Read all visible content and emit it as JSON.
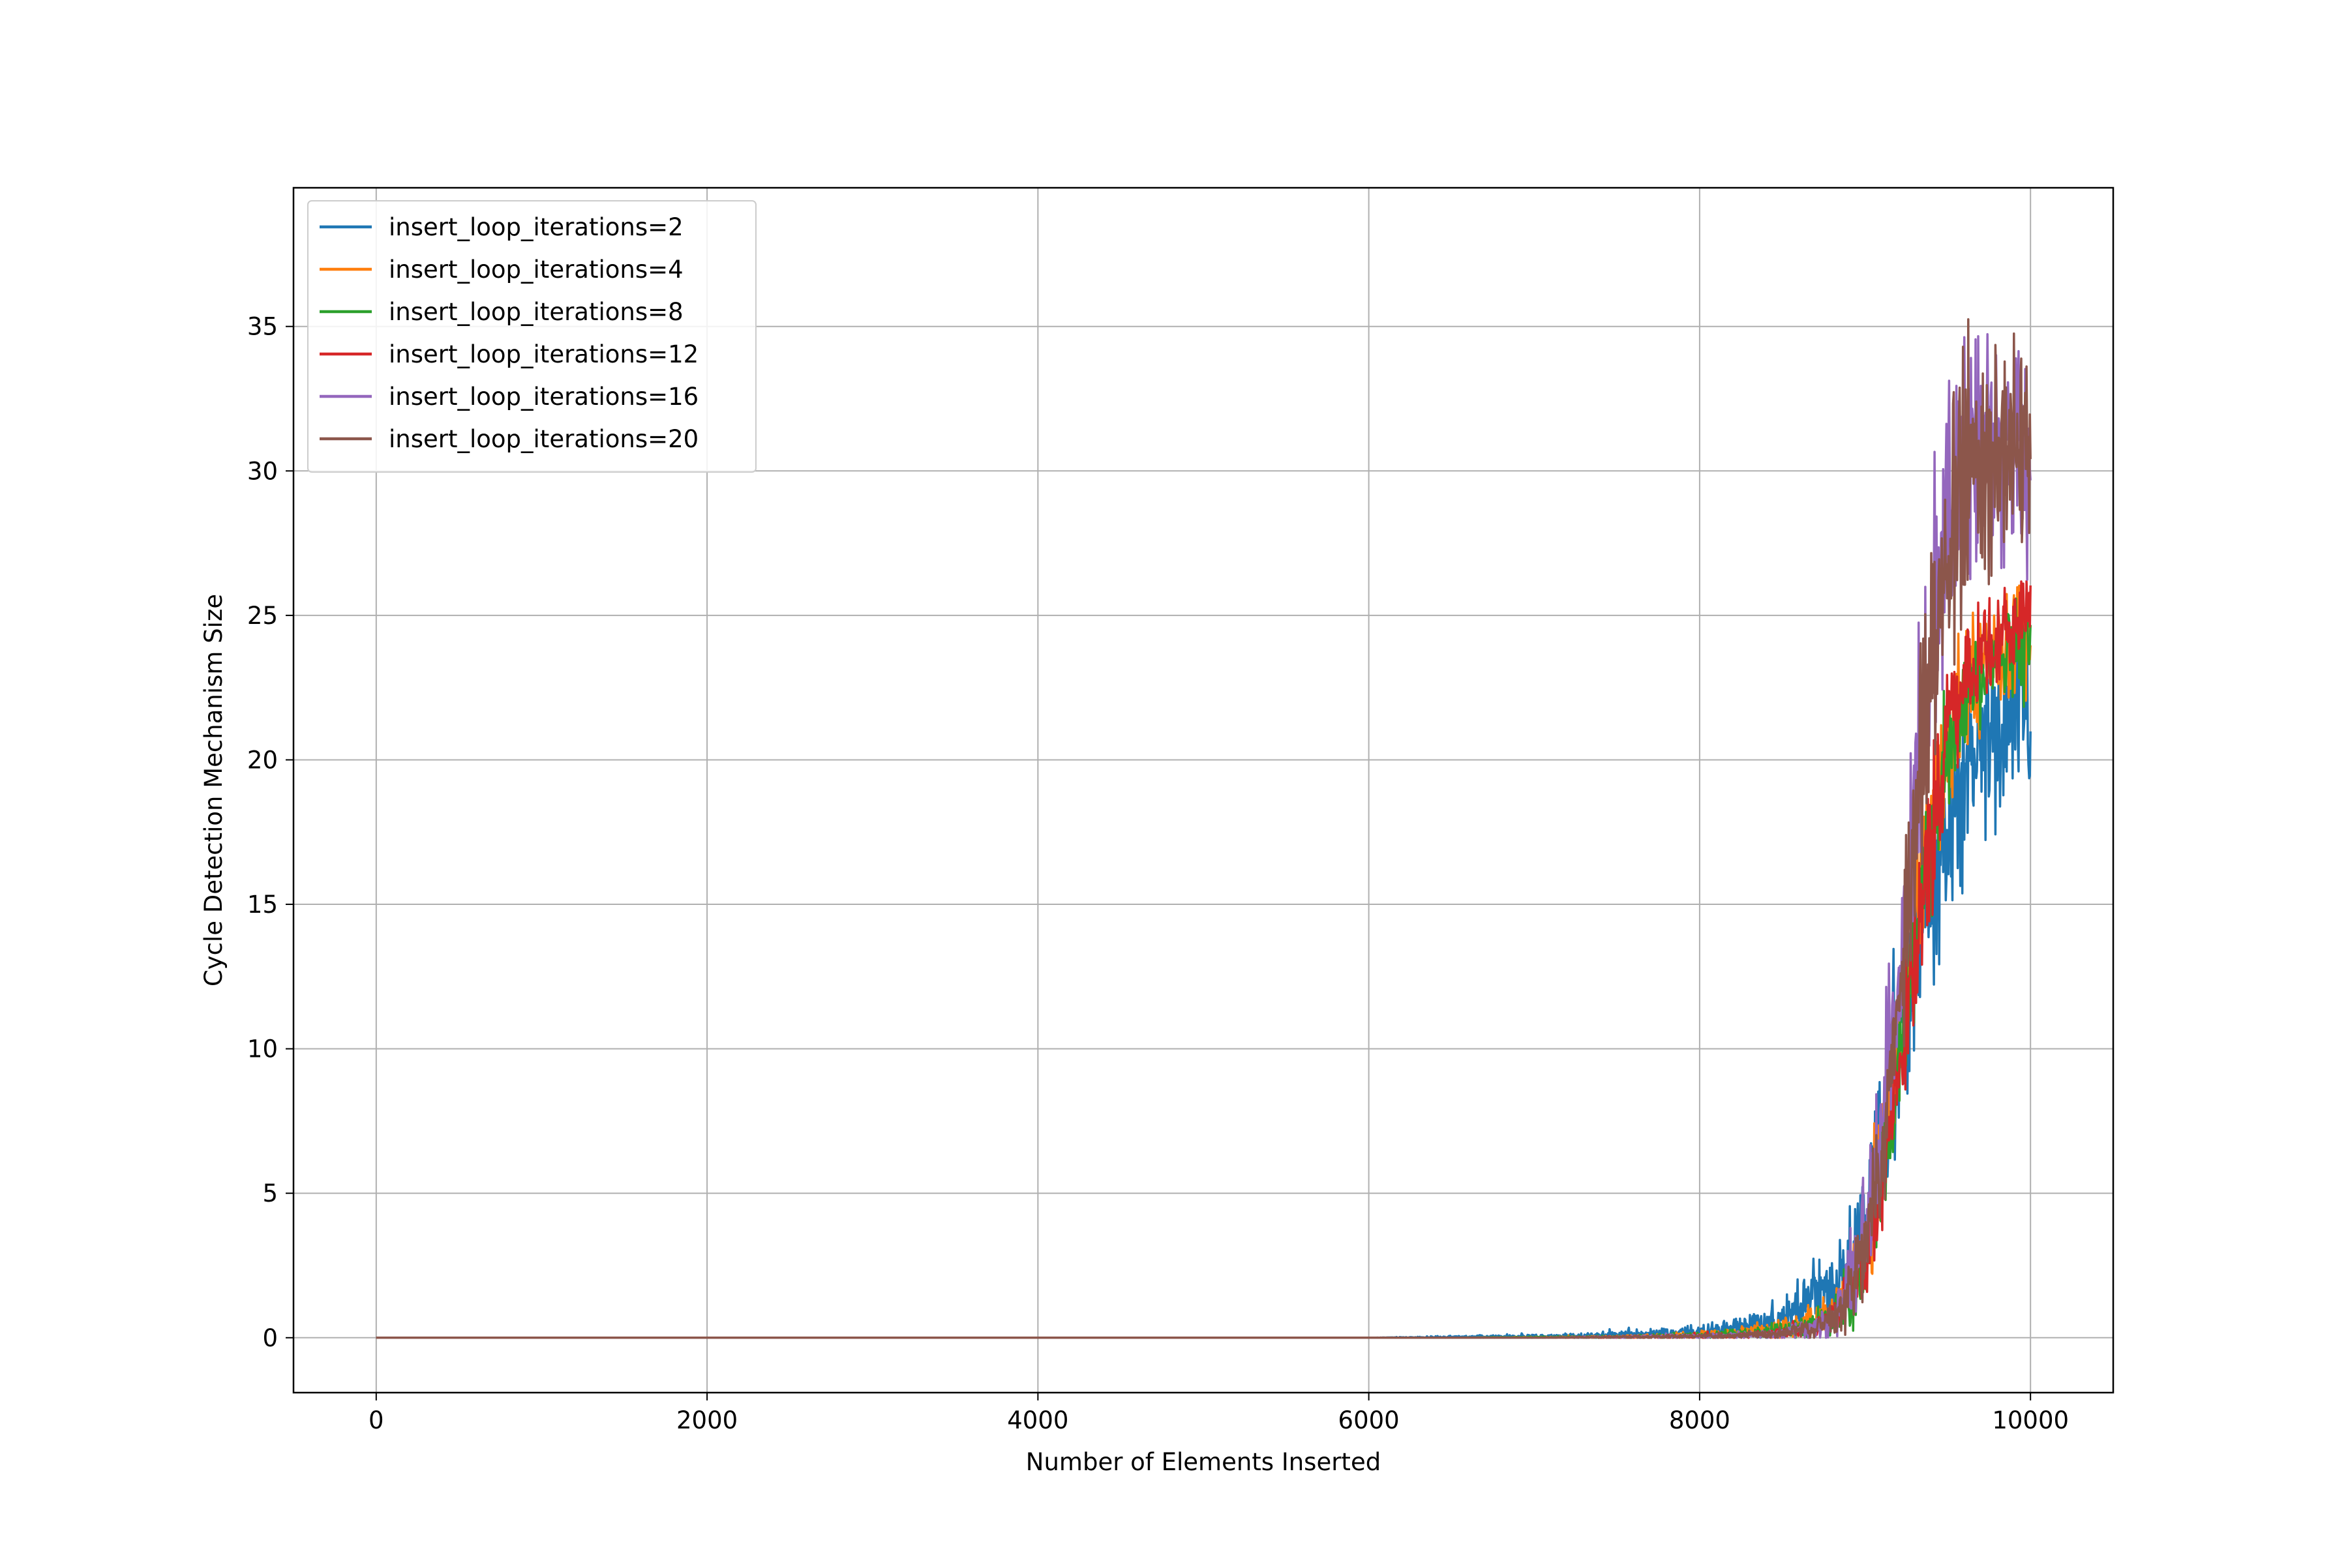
{
  "chart_data": {
    "type": "line",
    "title": "",
    "xlabel": "Number of Elements Inserted",
    "ylabel": "Cycle Detection Mechanism Size",
    "xlim": [
      -500,
      10500
    ],
    "ylim": [
      -1.9,
      39.8
    ],
    "xticks": [
      0,
      2000,
      4000,
      6000,
      8000,
      10000
    ],
    "xtick_labels": [
      "0",
      "2000",
      "4000",
      "6000",
      "8000",
      "10000"
    ],
    "yticks": [
      0,
      5,
      10,
      15,
      20,
      25,
      30,
      35
    ],
    "ytick_labels": [
      "0",
      "5",
      "10",
      "15",
      "20",
      "25",
      "30",
      "35"
    ],
    "grid": true,
    "legend_position": "top-left",
    "series": [
      {
        "name": "insert_loop_iterations=2",
        "color": "#1f77b4",
        "x": [
          0,
          6000,
          7000,
          7500,
          8000,
          8250,
          8500,
          8650,
          8800,
          8900,
          9000,
          9100,
          9200,
          9300,
          9400,
          9500,
          9600,
          9700,
          9800,
          9900,
          10000
        ],
        "y": [
          0,
          0,
          0.05,
          0.1,
          0.2,
          0.35,
          0.7,
          1.2,
          1.8,
          2.6,
          4.2,
          6.5,
          9.5,
          12.5,
          15.5,
          17.5,
          19.0,
          20.5,
          21.5,
          22.0,
          22.0
        ],
        "noise": [
          0,
          0,
          0.05,
          0.1,
          0.15,
          0.3,
          0.5,
          0.8,
          1.0,
          1.2,
          1.4,
          1.8,
          2.0,
          2.2,
          2.4,
          2.4,
          2.4,
          2.4,
          2.4,
          2.4,
          2.2
        ]
      },
      {
        "name": "insert_loop_iterations=4",
        "color": "#ff7f0e",
        "x": [
          0,
          6500,
          7500,
          8000,
          8300,
          8600,
          8800,
          8950,
          9050,
          9150,
          9250,
          9350,
          9450,
          9550,
          9650,
          9750,
          9850,
          10000
        ],
        "y": [
          0,
          0,
          0.03,
          0.1,
          0.2,
          0.4,
          0.9,
          2.2,
          4.5,
          8.0,
          12.0,
          16.0,
          19.5,
          21.5,
          22.8,
          23.5,
          24.0,
          24.2
        ],
        "noise": [
          0,
          0,
          0.03,
          0.08,
          0.15,
          0.3,
          0.5,
          0.9,
          1.3,
          1.6,
          1.8,
          1.9,
          1.8,
          1.6,
          1.4,
          1.3,
          1.3,
          1.3
        ]
      },
      {
        "name": "insert_loop_iterations=8",
        "color": "#2ca02c",
        "x": [
          0,
          6500,
          7500,
          8000,
          8300,
          8600,
          8800,
          8950,
          9050,
          9150,
          9250,
          9350,
          9450,
          9550,
          9650,
          9750,
          9850,
          10000
        ],
        "y": [
          0,
          0,
          0.03,
          0.08,
          0.15,
          0.3,
          0.7,
          1.8,
          4.0,
          7.5,
          11.5,
          15.5,
          19.0,
          21.0,
          22.5,
          23.3,
          23.8,
          24.0
        ],
        "noise": [
          0,
          0,
          0.03,
          0.08,
          0.12,
          0.25,
          0.5,
          0.9,
          1.2,
          1.5,
          1.7,
          1.8,
          1.7,
          1.5,
          1.3,
          1.2,
          1.2,
          1.2
        ]
      },
      {
        "name": "insert_loop_iterations=12",
        "color": "#d62728",
        "x": [
          0,
          7000,
          8000,
          8400,
          8700,
          8850,
          9000,
          9100,
          9200,
          9300,
          9400,
          9500,
          9600,
          9700,
          9800,
          9900,
          10000
        ],
        "y": [
          0,
          0,
          0.05,
          0.1,
          0.3,
          0.8,
          2.5,
          5.0,
          8.5,
          13.0,
          17.0,
          20.5,
          22.5,
          23.8,
          24.5,
          24.8,
          25.0
        ],
        "noise": [
          0,
          0,
          0.05,
          0.1,
          0.2,
          0.5,
          1.0,
          1.3,
          1.6,
          1.8,
          1.8,
          1.6,
          1.4,
          1.3,
          1.2,
          1.2,
          1.2
        ]
      },
      {
        "name": "insert_loop_iterations=16",
        "color": "#9467bd",
        "x": [
          0,
          7000,
          8000,
          8400,
          8700,
          8850,
          9000,
          9100,
          9200,
          9300,
          9400,
          9500,
          9600,
          9700,
          9800,
          9900,
          10000
        ],
        "y": [
          0,
          0,
          0.05,
          0.1,
          0.3,
          1.0,
          3.5,
          7.0,
          12.5,
          19.0,
          24.5,
          28.5,
          30.0,
          30.5,
          30.5,
          30.0,
          29.5
        ],
        "noise": [
          0,
          0,
          0.05,
          0.1,
          0.25,
          0.7,
          1.4,
          2.0,
          2.6,
          3.0,
          3.4,
          3.6,
          3.3,
          3.0,
          2.8,
          2.8,
          2.6
        ]
      },
      {
        "name": "insert_loop_iterations=20",
        "color": "#8c564b",
        "x": [
          0,
          7000,
          8000,
          8400,
          8700,
          8850,
          9000,
          9100,
          9200,
          9300,
          9400,
          9500,
          9600,
          9700,
          9800,
          9900,
          10000
        ],
        "y": [
          0,
          0,
          0.05,
          0.1,
          0.3,
          0.9,
          3.0,
          6.5,
          11.5,
          17.5,
          23.5,
          27.5,
          29.5,
          30.5,
          30.8,
          30.5,
          30.0
        ],
        "noise": [
          0,
          0,
          0.05,
          0.1,
          0.2,
          0.6,
          1.2,
          1.8,
          2.4,
          2.8,
          3.0,
          3.2,
          3.0,
          2.8,
          2.6,
          2.6,
          2.4
        ]
      }
    ]
  }
}
